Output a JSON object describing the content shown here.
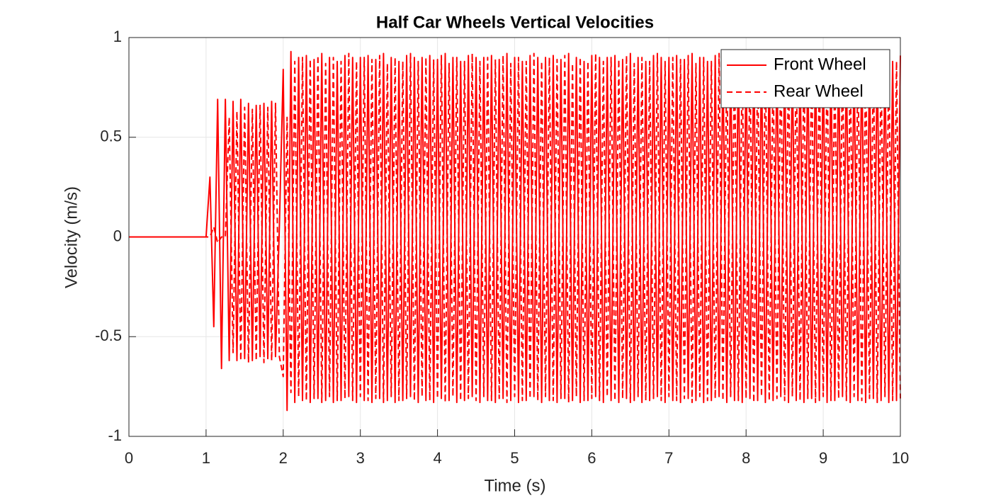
{
  "chart_data": {
    "type": "line",
    "title": "Half Car Wheels Vertical Velocities",
    "x_label": "Time (s)",
    "y_label": "Velocity (m/s)",
    "xlim": [
      0,
      10
    ],
    "ylim": [
      -1,
      1
    ],
    "xticks": [
      0,
      1,
      2,
      3,
      4,
      5,
      6,
      7,
      8,
      9,
      10
    ],
    "yticks": [
      -1,
      -0.5,
      0,
      0.5,
      1
    ],
    "grid": true,
    "legend": "northeast",
    "x": [
      0,
      1,
      1.05,
      1.1,
      1.15,
      1.2,
      1.25,
      1.3,
      1.35,
      1.4,
      1.45,
      1.5,
      1.55,
      1.6,
      1.65,
      1.7,
      1.75,
      1.8,
      1.85,
      1.9,
      1.95,
      2,
      2.05,
      2.1,
      2.15,
      2.2,
      2.25,
      2.3,
      2.35,
      2.4,
      2.45,
      2.5,
      2.55,
      2.6,
      2.65,
      2.7,
      2.75,
      2.8,
      2.85,
      2.9,
      2.95,
      3,
      3.05,
      3.1,
      3.15,
      3.2,
      3.25,
      3.3,
      3.35,
      3.4,
      3.45,
      3.5,
      3.55,
      3.6,
      3.65,
      3.7,
      3.75,
      3.8,
      3.85,
      3.9,
      3.95,
      4,
      4.05,
      4.1,
      4.15,
      4.2,
      4.25,
      4.3,
      4.35,
      4.4,
      4.45,
      4.5,
      4.55,
      4.6,
      4.65,
      4.7,
      4.75,
      4.8,
      4.85,
      4.9,
      4.95,
      5,
      5.05,
      5.1,
      5.15,
      5.2,
      5.25,
      5.3,
      5.35,
      5.4,
      5.45,
      5.5,
      5.55,
      5.6,
      5.65,
      5.7,
      5.75,
      5.8,
      5.85,
      5.9,
      5.95,
      6,
      6.05,
      6.1,
      6.15,
      6.2,
      6.25,
      6.3,
      6.35,
      6.4,
      6.45,
      6.5,
      6.55,
      6.6,
      6.65,
      6.7,
      6.75,
      6.8,
      6.85,
      6.9,
      6.95,
      7,
      7.05,
      7.1,
      7.15,
      7.2,
      7.25,
      7.3,
      7.35,
      7.4,
      7.45,
      7.5,
      7.55,
      7.6,
      7.65,
      7.7,
      7.75,
      7.8,
      7.85,
      7.9,
      7.95,
      8,
      8.05,
      8.1,
      8.15,
      8.2,
      8.25,
      8.3,
      8.35,
      8.4,
      8.45,
      8.5,
      8.55,
      8.6,
      8.65,
      8.7,
      8.75,
      8.8,
      8.85,
      8.9,
      8.95,
      9,
      9.05,
      9.1,
      9.15,
      9.2,
      9.25,
      9.3,
      9.35,
      9.4,
      9.45,
      9.5,
      9.55,
      9.6,
      9.65,
      9.7,
      9.75,
      9.8,
      9.85,
      9.9,
      9.95,
      10
    ],
    "series": [
      {
        "name": "Front Wheel",
        "color": "#ff0000",
        "dash": "solid",
        "values": [
          0,
          0,
          0.3,
          -0.45,
          0.69,
          -0.66,
          0.69,
          -0.62,
          0.68,
          -0.62,
          0.69,
          -0.61,
          0.67,
          -0.62,
          0.66,
          -0.6,
          0.67,
          -0.61,
          0.68,
          -0.6,
          0.05,
          0.84,
          -0.87,
          0.93,
          -0.83,
          0.9,
          -0.82,
          0.91,
          -0.83,
          0.89,
          -0.81,
          0.92,
          -0.82,
          0.9,
          -0.83,
          0.88,
          -0.82,
          0.91,
          -0.8,
          0.9,
          -0.83,
          0.9,
          -0.82,
          0.91,
          -0.83,
          0.89,
          -0.81,
          0.92,
          -0.82,
          0.9,
          -0.83,
          0.88,
          -0.82,
          0.91,
          -0.8,
          0.9,
          -0.83,
          0.9,
          -0.82,
          0.91,
          -0.83,
          0.89,
          -0.81,
          0.92,
          -0.82,
          0.9,
          -0.83,
          0.88,
          -0.82,
          0.91,
          -0.8,
          0.9,
          -0.83,
          0.9,
          -0.82,
          0.91,
          -0.83,
          0.89,
          -0.81,
          0.92,
          -0.82,
          0.9,
          -0.83,
          0.88,
          -0.82,
          0.91,
          -0.8,
          0.9,
          -0.83,
          0.9,
          -0.82,
          0.91,
          -0.83,
          0.89,
          -0.81,
          0.92,
          -0.82,
          0.9,
          -0.83,
          0.88,
          -0.82,
          0.91,
          -0.8,
          0.9,
          -0.83,
          0.9,
          -0.82,
          0.91,
          -0.83,
          0.89,
          -0.81,
          0.92,
          -0.82,
          0.9,
          -0.83,
          0.88,
          -0.82,
          0.91,
          -0.8,
          0.9,
          -0.83,
          0.9,
          -0.82,
          0.91,
          -0.83,
          0.89,
          -0.81,
          0.92,
          -0.82,
          0.9,
          -0.83,
          0.88,
          -0.82,
          0.91,
          -0.8,
          0.9,
          -0.83,
          0.9,
          -0.82,
          0.91,
          -0.83,
          0.89,
          -0.81,
          0.92,
          -0.82,
          0.9,
          -0.83,
          0.88,
          -0.82,
          0.91,
          -0.8,
          0.9,
          -0.83,
          0.9,
          -0.82,
          0.91,
          -0.83,
          0.89,
          -0.81,
          0.92,
          -0.82,
          0.9,
          -0.83,
          0.88,
          -0.82,
          0.91,
          -0.8,
          0.9,
          -0.83,
          0.9,
          -0.82,
          0.91,
          -0.83,
          0.89,
          -0.81,
          0.92,
          -0.82,
          0.9,
          -0.83,
          0.88,
          -0.82,
          0.91
        ]
      },
      {
        "name": "Rear Wheel",
        "color": "#ff0000",
        "dash": "dashed",
        "values": [
          0,
          0,
          0,
          0.05,
          -0.03,
          0,
          0,
          0.6,
          -0.58,
          0.63,
          -0.62,
          0.65,
          -0.63,
          0.64,
          -0.62,
          0.66,
          -0.63,
          0.65,
          -0.62,
          0.67,
          -0.6,
          -0.7,
          0.6,
          -0.78,
          0.88,
          -0.8,
          0.9,
          -0.82,
          0.89,
          -0.81,
          0.91,
          -0.83,
          0.87,
          -0.8,
          0.9,
          -0.82,
          0.88,
          -0.81,
          0.92,
          -0.82,
          0.88,
          -0.8,
          0.9,
          -0.82,
          0.89,
          -0.81,
          0.91,
          -0.83,
          0.87,
          -0.8,
          0.9,
          -0.82,
          0.88,
          -0.81,
          0.92,
          -0.82,
          0.88,
          -0.8,
          0.9,
          -0.82,
          0.89,
          -0.81,
          0.91,
          -0.83,
          0.87,
          -0.8,
          0.9,
          -0.82,
          0.88,
          -0.81,
          0.92,
          -0.82,
          0.88,
          -0.8,
          0.9,
          -0.82,
          0.89,
          -0.81,
          0.91,
          -0.83,
          0.87,
          -0.8,
          0.9,
          -0.82,
          0.88,
          -0.81,
          0.92,
          -0.82,
          0.88,
          -0.8,
          0.9,
          -0.82,
          0.89,
          -0.81,
          0.91,
          -0.83,
          0.87,
          -0.8,
          0.9,
          -0.82,
          0.88,
          -0.81,
          0.92,
          -0.82,
          0.88,
          -0.8,
          0.9,
          -0.82,
          0.89,
          -0.81,
          0.91,
          -0.83,
          0.87,
          -0.8,
          0.9,
          -0.82,
          0.88,
          -0.81,
          0.92,
          -0.82,
          0.88,
          -0.8,
          0.9,
          -0.82,
          0.89,
          -0.81,
          0.91,
          -0.83,
          0.87,
          -0.8,
          0.9,
          -0.82,
          0.88,
          -0.81,
          0.92,
          -0.82,
          0.88,
          -0.8,
          0.9,
          -0.82,
          0.89,
          -0.81,
          0.91,
          -0.83,
          0.87,
          -0.8,
          0.9,
          -0.82,
          0.88,
          -0.81,
          0.92,
          -0.82,
          0.88,
          -0.8,
          0.9,
          -0.82,
          0.89,
          -0.81,
          0.91,
          -0.83,
          0.87,
          -0.8,
          0.9,
          -0.82,
          0.88,
          -0.81,
          0.92,
          -0.82,
          0.88,
          -0.8,
          0.9,
          -0.82,
          0.89,
          -0.81,
          0.91,
          -0.83,
          0.87,
          -0.8,
          0.9,
          -0.82,
          0.88,
          -0.81
        ]
      }
    ]
  }
}
